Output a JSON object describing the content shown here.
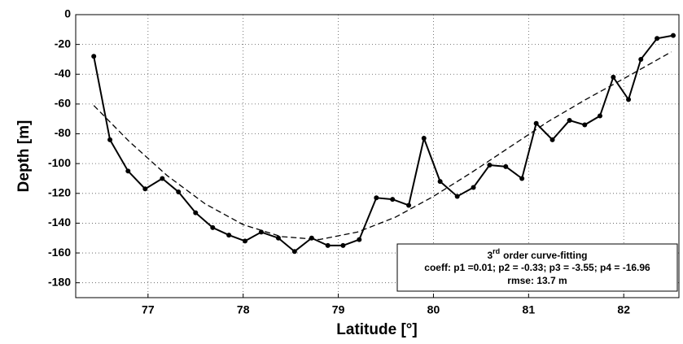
{
  "chart_data": {
    "type": "line",
    "xlabel": "Latitude [°]",
    "ylabel": "Depth [m]",
    "annotation": {
      "order": "3",
      "order_suffix": "rd",
      "heading": "order curve-fitting",
      "coeff": "coeff: p1 =0.01; p2 = -0.33; p3 = -3.55; p4 = -16.96",
      "rmse": "rmse: 13.7 m"
    },
    "xlim": [
      76.24,
      82.58
    ],
    "xticks": [
      77,
      78,
      79,
      80,
      81,
      82
    ],
    "ylim": [
      -190,
      0
    ],
    "yticks": [
      0,
      -20,
      -40,
      -60,
      -80,
      -100,
      -120,
      -140,
      -160,
      -180
    ],
    "grid": true,
    "series": [
      {
        "color": "#000000",
        "dashed": false,
        "markers": true,
        "x": [
          76.43,
          76.6,
          76.79,
          76.97,
          77.15,
          77.32,
          77.5,
          77.68,
          77.85,
          78.02,
          78.19,
          78.37,
          78.54,
          78.72,
          78.89,
          79.05,
          79.22,
          79.4,
          79.57,
          79.74,
          79.9,
          80.07,
          80.25,
          80.42,
          80.59,
          80.76,
          80.93,
          81.08,
          81.25,
          81.43,
          81.59,
          81.75,
          81.89,
          82.05,
          82.18,
          82.35,
          82.52
        ],
        "values": [
          -28,
          -84,
          -105,
          -117,
          -110,
          -119,
          -133,
          -143,
          -148,
          -152,
          -146,
          -150,
          -159,
          -150,
          -155,
          -155,
          -151,
          -123,
          -124,
          -128,
          -83,
          -112,
          -122,
          -116,
          -101,
          -102,
          -110,
          -73,
          -84,
          -71,
          -74,
          -68,
          -42,
          -57,
          -30,
          -16,
          -14
        ]
      },
      {
        "color": "#000000",
        "dashed": true,
        "markers": false,
        "x": [
          76.43,
          76.8,
          77.2,
          77.6,
          78.0,
          78.4,
          78.8,
          79.2,
          79.6,
          80.0,
          80.4,
          80.8,
          81.2,
          81.6,
          82.0,
          82.5
        ],
        "values": [
          -61,
          -85,
          -108,
          -127,
          -141,
          -149,
          -151,
          -146,
          -136,
          -122,
          -106,
          -89,
          -72,
          -57,
          -43,
          -25
        ]
      }
    ]
  }
}
